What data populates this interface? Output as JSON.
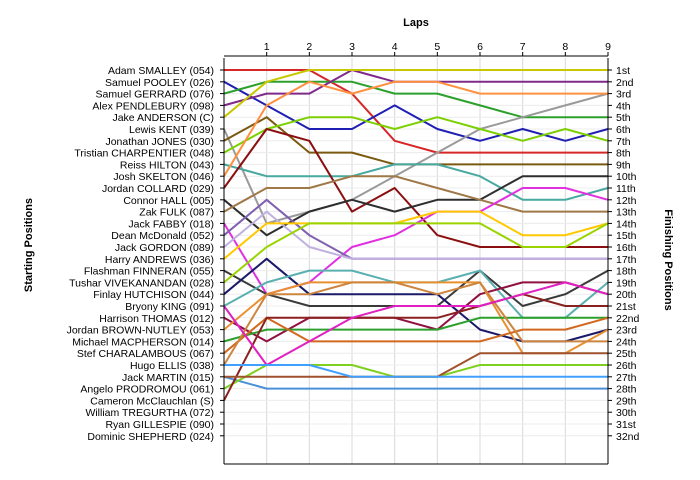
{
  "chart_data": {
    "type": "line",
    "title": "Laps",
    "y_left_label": "Starting Positions",
    "y_right_label": "Finishing Positions",
    "x": [
      0,
      1,
      2,
      3,
      4,
      5,
      6,
      7,
      8,
      9
    ],
    "x_tick_labels": [
      "1",
      "2",
      "3",
      "4",
      "5",
      "6",
      "7",
      "8",
      "9"
    ],
    "y_range": [
      1,
      32
    ],
    "starting_positions": [
      "Adam SMALLEY (054)",
      "Samuel POOLEY (026)",
      "Samuel GERRARD (076)",
      "Alex PENDLEBURY (098)",
      "Jake ANDERSON (C)",
      "Lewis KENT (039)",
      "Jonathan JONES (030)",
      "Tristian CHARPENTIER (048)",
      "Reiss HILTON (043)",
      "Josh SKELTON (046)",
      "Jordan COLLARD (029)",
      "Connor HALL (005)",
      "Zak FULK (087)",
      "Jack FABBY (018)",
      "Dean McDonald (052)",
      "Jack GORDON (089)",
      "Harry ANDREWS (036)",
      "Flashman FINNERAN (055)",
      "Tushar VIVEKANANDAN (028)",
      "Finlay HUTCHISON (044)",
      "Bryony KING (091)",
      "Harrison THOMAS (012)",
      "Jordan BROWN-NUTLEY (053)",
      "Michael MACPHERSON (014)",
      "Stef CHARALAMBOUS (067)",
      "Hugo ELLIS (038)",
      "Jack MARTIN (015)",
      "Angelo PRODROMOU (061)",
      "Cameron McClauchlan (S)",
      "William TREGURTHA (072)",
      "Ryan GILLESPIE (090)",
      "Dominic SHEPHERD (024)"
    ],
    "finishing_positions": [
      "1st",
      "2nd",
      "3rd",
      "4th",
      "5th",
      "6th",
      "7th",
      "8th",
      "9th",
      "10th",
      "11th",
      "12th",
      "13th",
      "14th",
      "15th",
      "16th",
      "17th",
      "18th",
      "19th",
      "20th",
      "21st",
      "22nd",
      "23rd",
      "24th",
      "25th",
      "26th",
      "27th",
      "28th",
      "29th",
      "30th",
      "31st",
      "32nd"
    ],
    "grid": true,
    "series": [
      {
        "color": "#d62728",
        "values": [
          1,
          1,
          1,
          3,
          7,
          8,
          8,
          8,
          8,
          8
        ]
      },
      {
        "color": "#1f1fb4",
        "values": [
          2,
          4,
          6,
          6,
          4,
          6,
          7,
          6,
          7,
          6
        ]
      },
      {
        "color": "#2ca02c",
        "values": [
          3,
          2,
          2,
          2,
          3,
          3,
          4,
          5,
          5,
          5
        ]
      },
      {
        "color": "#7f2a8a",
        "values": [
          4,
          3,
          3,
          1,
          2,
          2,
          2,
          2,
          2,
          2
        ]
      },
      {
        "color": "#c8c800",
        "values": [
          5,
          2,
          1,
          1,
          1,
          1,
          1,
          1,
          1,
          1
        ]
      },
      {
        "color": "#9a9a9a",
        "values": [
          6,
          14,
          13,
          12,
          10,
          8,
          6,
          5,
          4,
          3
        ]
      },
      {
        "color": "#7a5a10",
        "values": [
          7,
          5,
          8,
          8,
          9,
          9,
          9,
          9,
          9,
          9
        ]
      },
      {
        "color": "#7cd000",
        "values": [
          8,
          6,
          5,
          5,
          6,
          5,
          6,
          7,
          6,
          7
        ]
      },
      {
        "color": "#47a9a0",
        "values": [
          9,
          10,
          10,
          10,
          9,
          9,
          10,
          12,
          12,
          11
        ]
      },
      {
        "color": "#ff9040",
        "values": [
          10,
          4,
          2,
          3,
          2,
          2,
          3,
          3,
          3,
          3
        ]
      },
      {
        "color": "#8b0f10",
        "values": [
          11,
          6,
          7,
          13,
          11,
          15,
          16,
          16,
          16,
          16
        ]
      },
      {
        "color": "#2e2e2e",
        "values": [
          12,
          15,
          13,
          12,
          13,
          12,
          12,
          10,
          10,
          10
        ]
      },
      {
        "color": "#a07848",
        "values": [
          13,
          11,
          11,
          10,
          10,
          11,
          12,
          13,
          13,
          13
        ]
      },
      {
        "color": "#e030e0",
        "values": [
          14,
          20,
          19,
          16,
          15,
          13,
          13,
          11,
          11,
          12
        ]
      },
      {
        "color": "#8060b0",
        "values": [
          15,
          12,
          15,
          17,
          17,
          17,
          17,
          17,
          17,
          17
        ]
      },
      {
        "color": "#c0b0e0",
        "values": [
          16,
          13,
          16,
          17,
          17,
          17,
          17,
          17,
          17,
          17
        ]
      },
      {
        "color": "#ffc800",
        "values": [
          17,
          14,
          14,
          14,
          14,
          13,
          13,
          15,
          15,
          14
        ]
      },
      {
        "color": "#3a3a3a",
        "values": [
          18,
          20,
          21,
          21,
          21,
          21,
          18,
          21,
          20,
          18
        ]
      },
      {
        "color": "#9ad400",
        "values": [
          19,
          16,
          14,
          14,
          14,
          14,
          14,
          16,
          16,
          14
        ]
      },
      {
        "color": "#1a1a6a",
        "values": [
          20,
          17,
          20,
          20,
          20,
          20,
          23,
          24,
          24,
          23
        ]
      },
      {
        "color": "#5ab0b0",
        "values": [
          21,
          19,
          18,
          18,
          19,
          19,
          18,
          22,
          22,
          19
        ]
      },
      {
        "color": "#901040",
        "values": [
          22,
          24,
          22,
          22,
          22,
          23,
          20,
          19,
          19,
          20
        ]
      },
      {
        "color": "#e89030",
        "values": [
          23,
          20,
          19,
          19,
          19,
          19,
          19,
          25,
          25,
          23
        ]
      },
      {
        "color": "#2ca02c",
        "values": [
          24,
          23,
          23,
          23,
          23,
          23,
          22,
          22,
          22,
          22
        ]
      },
      {
        "color": "#d2691e",
        "values": [
          25,
          22,
          24,
          24,
          24,
          24,
          24,
          23,
          23,
          22
        ]
      },
      {
        "color": "#cd853f",
        "values": [
          26,
          20,
          20,
          19,
          19,
          20,
          19,
          24,
          24,
          24
        ]
      },
      {
        "color": "#4a90d9",
        "values": [
          27,
          28,
          28,
          28,
          28,
          28,
          28,
          28,
          28,
          28
        ]
      },
      {
        "color": "#7fd020",
        "values": [
          28,
          26,
          26,
          26,
          27,
          27,
          26,
          26,
          26,
          26
        ]
      },
      {
        "color": "#8b2020",
        "values": [
          29,
          22,
          22,
          22,
          22,
          22,
          21,
          20,
          21,
          21
        ]
      },
      {
        "color": "#a0522d",
        "values": [
          27,
          27,
          27,
          27,
          27,
          27,
          25,
          25,
          25,
          25
        ]
      },
      {
        "color": "#e020c0",
        "values": [
          21,
          26,
          24,
          22,
          21,
          21,
          21,
          20,
          19,
          20
        ]
      },
      {
        "color": "#40a0ff",
        "values": [
          26,
          26,
          26,
          27,
          27,
          27,
          27,
          27,
          27,
          27
        ]
      }
    ]
  }
}
